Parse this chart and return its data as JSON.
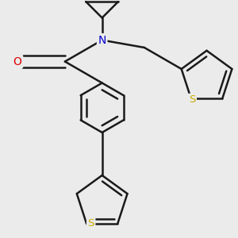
{
  "bg_color": "#ebebeb",
  "bond_color": "#1a1a1a",
  "bond_width": 1.8,
  "atom_colors": {
    "O": "#dd0000",
    "N": "#0000cc",
    "S": "#ccaa00"
  },
  "figsize": [
    3.0,
    3.0
  ],
  "dpi": 100
}
